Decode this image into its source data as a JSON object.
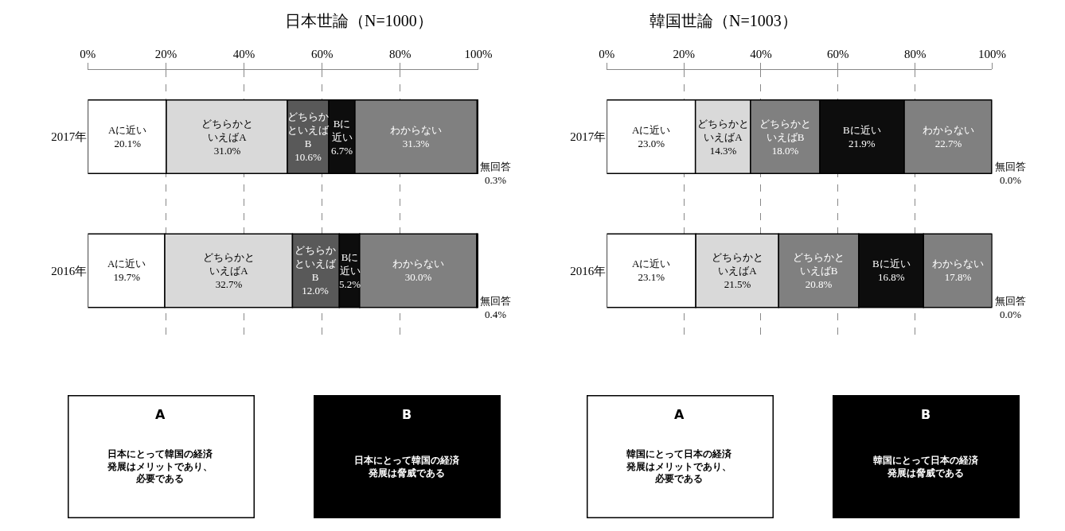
{
  "chart_data": [
    {
      "type": "bar",
      "title": "日本世論（N=1000）",
      "orientation": "horizontal",
      "stacked": true,
      "grid": "x",
      "categories": [
        "2017年",
        "2016年"
      ],
      "xlim": [
        0,
        100
      ],
      "xticks": [
        {
          "value": 0,
          "label": "0%"
        },
        {
          "value": 20,
          "label": "20%"
        },
        {
          "value": 40,
          "label": "40%"
        },
        {
          "value": 60,
          "label": "60%"
        },
        {
          "value": 80,
          "label": "80%"
        },
        {
          "value": 100,
          "label": "100%"
        }
      ],
      "series": [
        {
          "color": "#ffffff",
          "values": [
            20.1,
            19.7
          ],
          "value_labels": [
            "Aに近い 20.1%",
            "Aに近い 19.7%"
          ]
        },
        {
          "color": "#d9d9d9",
          "values": [
            31.0,
            32.7
          ],
          "value_labels": [
            "どちらかといえばA 31.0%",
            "どちらかといえばA 32.7%"
          ]
        },
        {
          "color": "#595959",
          "values": [
            10.6,
            12.0
          ],
          "value_labels": [
            "どちらかといえばB 10.6%",
            "どちらかといえばB 12.0%"
          ]
        },
        {
          "color": "#0d0d0d",
          "values": [
            6.7,
            5.2
          ],
          "value_labels": [
            "Bに近い 6.7%",
            "Bに近い 5.2%"
          ]
        },
        {
          "color": "#808080",
          "values": [
            31.3,
            30.0
          ],
          "value_labels": [
            "わからない 31.3%",
            "わからない 30.0%"
          ]
        },
        {
          "color": "#000000",
          "values": [
            0.3,
            0.4
          ],
          "value_labels": [
            "無回答 0.3%",
            "無回答 0.4%"
          ]
        }
      ],
      "annotations": [
        "A",
        "日本にとって韓国の経済発展はメリットであり、必要である",
        "B",
        "日本にとって韓国の経済発展は脅威である"
      ]
    },
    {
      "type": "bar",
      "title": "韓国世論（N=1003）",
      "orientation": "horizontal",
      "stacked": true,
      "grid": "x",
      "categories": [
        "2017年",
        "2016年"
      ],
      "xlim": [
        0,
        100
      ],
      "xticks": [
        {
          "value": 0,
          "label": "0%"
        },
        {
          "value": 20,
          "label": "20%"
        },
        {
          "value": 40,
          "label": "40%"
        },
        {
          "value": 60,
          "label": "60%"
        },
        {
          "value": 80,
          "label": "80%"
        },
        {
          "value": 100,
          "label": "100%"
        }
      ],
      "series": [
        {
          "color": "#ffffff",
          "values": [
            23.0,
            23.1
          ],
          "value_labels": [
            "Aに近い 23.0%",
            "Aに近い 23.1%"
          ]
        },
        {
          "color": "#d9d9d9",
          "values": [
            14.3,
            21.5
          ],
          "value_labels": [
            "どちらかといえばA 14.3%",
            "どちらかといえばA 21.5%"
          ]
        },
        {
          "color": "#808080",
          "values": [
            18.0,
            20.8
          ],
          "value_labels": [
            "どちらかといえばB 18.0%",
            "どちらかといえばB 20.8%"
          ]
        },
        {
          "color": "#0d0d0d",
          "values": [
            21.9,
            16.8
          ],
          "value_labels": [
            "Bに近い 21.9%",
            "Bに近い 16.8%"
          ]
        },
        {
          "color": "#808080",
          "values": [
            22.7,
            17.8
          ],
          "value_labels": [
            "わからない 22.7%",
            "わからない 17.8%"
          ]
        },
        {
          "color": "#000000",
          "values": [
            0.0,
            0.0
          ],
          "value_labels": [
            "無回答 0.0%",
            "無回答 0.0%"
          ]
        }
      ],
      "annotations": [
        "A",
        "韓国にとって日本の経済発展はメリットであり、必要である",
        "B",
        "韓国にとって日本の経済発展は脅威である"
      ]
    }
  ]
}
